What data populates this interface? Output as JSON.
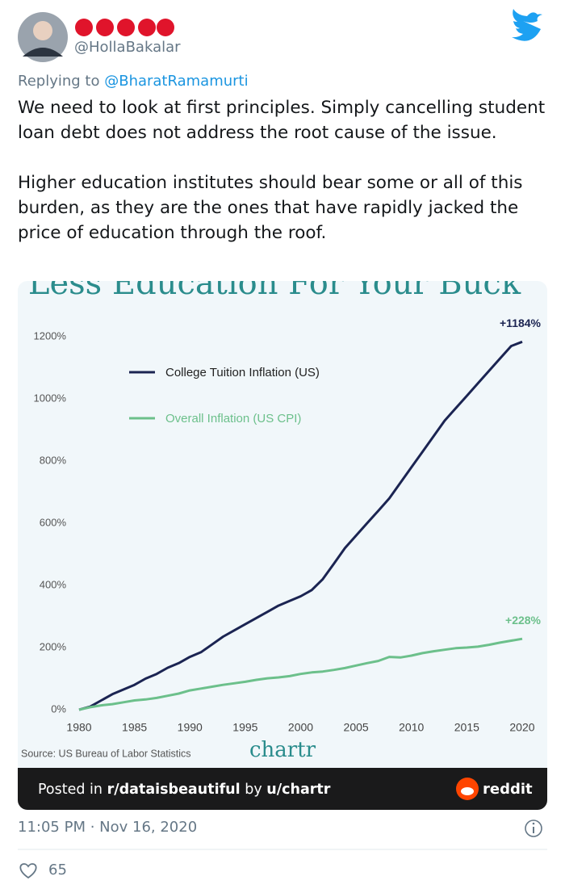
{
  "tweet": {
    "handle": "@HollaBakalar",
    "replying_to": "Replying to",
    "reply_handle": "@BharatRamamurti",
    "paragraphs": [
      "We need to look at first principles. Simply cancelling student loan debt does not address the root cause of the issue.",
      "Higher education institutes should bear some or all of this burden, as they are the ones that have rapidly jacked the price of education through the roof."
    ],
    "timestamp": "11:05 PM · Nov 16, 2020",
    "likes": 65
  },
  "chart_data": {
    "type": "line",
    "title": "Less Education For Your Buck",
    "x": [
      1980,
      1981,
      1982,
      1983,
      1984,
      1985,
      1986,
      1987,
      1988,
      1989,
      1990,
      1991,
      1992,
      1993,
      1994,
      1995,
      1996,
      1997,
      1998,
      1999,
      2000,
      2001,
      2002,
      2003,
      2004,
      2005,
      2006,
      2007,
      2008,
      2009,
      2010,
      2011,
      2012,
      2013,
      2014,
      2015,
      2016,
      2017,
      2018,
      2019,
      2020
    ],
    "series": [
      {
        "name": "College Tuition Inflation (US)",
        "color": "#1b2452",
        "end_label": "+1184%",
        "values": [
          0,
          10,
          30,
          50,
          65,
          80,
          100,
          115,
          135,
          150,
          170,
          185,
          210,
          235,
          255,
          275,
          295,
          315,
          335,
          350,
          365,
          385,
          420,
          470,
          520,
          560,
          600,
          640,
          680,
          730,
          780,
          830,
          880,
          930,
          970,
          1010,
          1050,
          1090,
          1130,
          1170,
          1184
        ]
      },
      {
        "name": "Overall Inflation (US CPI)",
        "color": "#6cc08b",
        "end_label": "+228%",
        "values": [
          0,
          8,
          14,
          18,
          24,
          30,
          33,
          38,
          45,
          52,
          62,
          68,
          74,
          80,
          85,
          90,
          96,
          101,
          104,
          108,
          115,
          120,
          123,
          128,
          134,
          142,
          150,
          157,
          170,
          168,
          174,
          182,
          188,
          193,
          198,
          200,
          203,
          209,
          216,
          222,
          228
        ]
      }
    ],
    "xlim": [
      1980,
      2021
    ],
    "xticks": [
      1980,
      1985,
      1990,
      1995,
      2000,
      2005,
      2010,
      2015,
      2020
    ],
    "ylim": [
      0,
      1260
    ],
    "yticks": [
      {
        "value": 0,
        "label": "0%"
      },
      {
        "value": 200,
        "label": "200%"
      },
      {
        "value": 400,
        "label": "400%"
      },
      {
        "value": 600,
        "label": "600%"
      },
      {
        "value": 800,
        "label": "800%"
      },
      {
        "value": 1000,
        "label": "1000%"
      },
      {
        "value": 1200,
        "label": "1200%"
      }
    ],
    "grid": false,
    "legend": "upper left",
    "source": "Source: US Bureau of Labor Statistics",
    "logo": "chartr"
  },
  "reddit_bar": {
    "posted_in": "Posted in",
    "subreddit": "r/dataisbeautiful",
    "by": "by",
    "user": "u/chartr",
    "brand": "reddit"
  }
}
